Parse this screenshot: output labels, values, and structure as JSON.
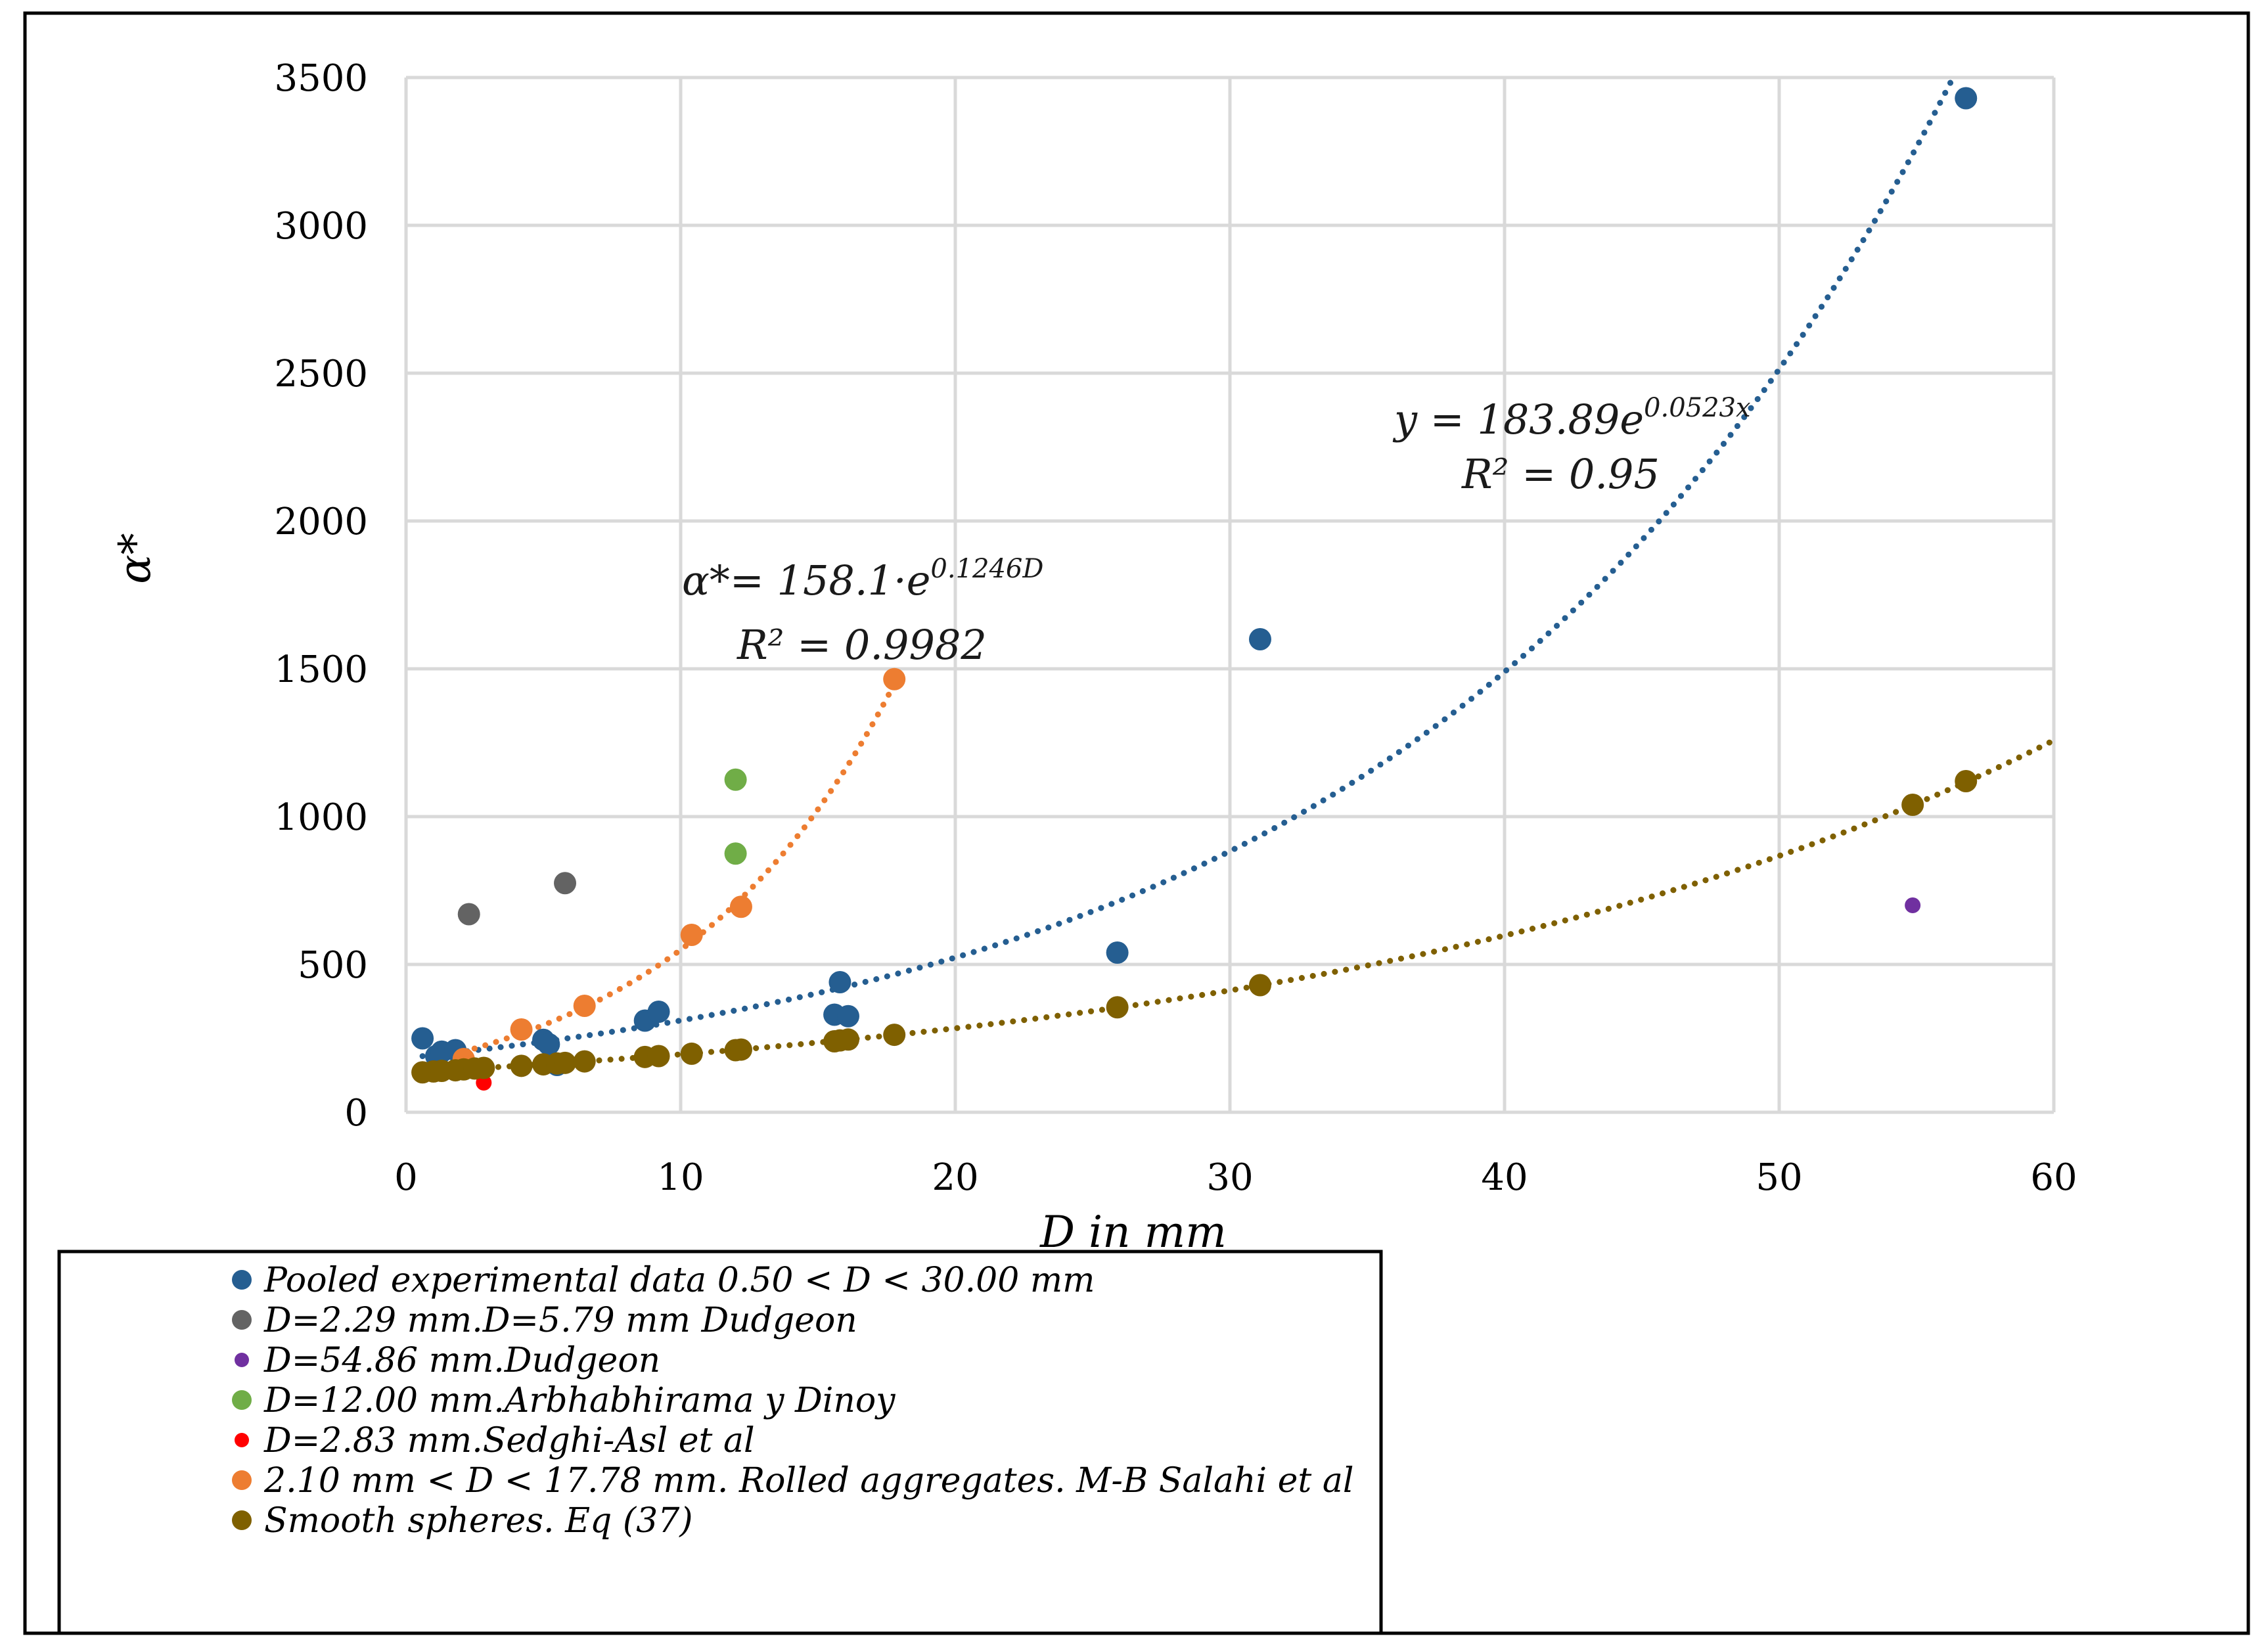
{
  "chart_data": {
    "type": "scatter",
    "xlabel": "D in mm",
    "ylabel": "α*",
    "xlim": [
      0,
      60
    ],
    "ylim": [
      0,
      3500
    ],
    "x_ticks": [
      0,
      10,
      20,
      30,
      40,
      50,
      60
    ],
    "y_ticks": [
      0,
      500,
      1000,
      1500,
      2000,
      2500,
      3000,
      3500
    ],
    "grid": true,
    "legend_position": "bottom",
    "series": [
      {
        "name": "Pooled experimental data 0.50 < D < 30.00 mm",
        "color": "#255e91",
        "marker": "large",
        "points": [
          [
            0.6,
            250
          ],
          [
            1.1,
            190
          ],
          [
            1.3,
            205
          ],
          [
            1.8,
            210
          ],
          [
            2.1,
            175
          ],
          [
            5.0,
            245
          ],
          [
            5.2,
            230
          ],
          [
            5.5,
            160
          ],
          [
            8.7,
            310
          ],
          [
            9.2,
            340
          ],
          [
            15.6,
            330
          ],
          [
            15.8,
            440
          ],
          [
            16.1,
            325
          ],
          [
            25.9,
            540
          ],
          [
            31.1,
            1600
          ],
          [
            56.8,
            3430
          ]
        ]
      },
      {
        "name": "D=2.29 mm.D=5.79 mm Dudgeon",
        "color": "#636363",
        "marker": "large",
        "points": [
          [
            2.29,
            670
          ],
          [
            5.79,
            775
          ]
        ]
      },
      {
        "name": "D=54.86 mm.Dudgeon",
        "color": "#7030a0",
        "marker": "small",
        "points": [
          [
            54.86,
            700
          ]
        ]
      },
      {
        "name": "D=12.00 mm.Arbhabhirama y Dinoy",
        "color": "#70ad47",
        "marker": "large",
        "points": [
          [
            12.0,
            1125
          ],
          [
            12.0,
            875
          ]
        ]
      },
      {
        "name": "D=2.83 mm.Sedghi-Asl et al",
        "color": "#ff0000",
        "marker": "small",
        "points": [
          [
            2.83,
            100
          ]
        ]
      },
      {
        "name": "2.10 mm < D < 17.78 mm. Rolled aggregates. M-B Salahi et al",
        "color": "#ed7d31",
        "marker": "large",
        "points": [
          [
            2.1,
            180
          ],
          [
            4.2,
            280
          ],
          [
            6.5,
            360
          ],
          [
            10.4,
            600
          ],
          [
            12.2,
            695
          ],
          [
            17.78,
            1465
          ]
        ]
      },
      {
        "name": "Smooth spheres. Eq (37)",
        "color": "#7f6000",
        "marker": "large",
        "points": [
          [
            0.6,
            135
          ],
          [
            1.0,
            138
          ],
          [
            1.3,
            140
          ],
          [
            1.8,
            142
          ],
          [
            2.1,
            145
          ],
          [
            2.5,
            148
          ],
          [
            2.83,
            150
          ],
          [
            4.2,
            157
          ],
          [
            5.0,
            162
          ],
          [
            5.5,
            165
          ],
          [
            5.79,
            167
          ],
          [
            6.5,
            172
          ],
          [
            8.7,
            187
          ],
          [
            9.2,
            190
          ],
          [
            10.4,
            198
          ],
          [
            12.0,
            210
          ],
          [
            12.2,
            212
          ],
          [
            15.6,
            240
          ],
          [
            15.8,
            243
          ],
          [
            16.1,
            246
          ],
          [
            17.78,
            262
          ],
          [
            25.9,
            355
          ],
          [
            31.1,
            430
          ],
          [
            54.86,
            1040
          ],
          [
            56.8,
            1120
          ]
        ]
      }
    ],
    "trendlines": [
      {
        "series": "Pooled experimental data 0.50 < D < 30.00 mm",
        "color": "#255e91",
        "a": 183.89,
        "b": 0.0523,
        "x_range": [
          0.6,
          56.3
        ]
      },
      {
        "series": "2.10 mm < D < 17.78 mm. Rolled aggregates. M-B Salahi et al",
        "color": "#ed7d31",
        "a": 158.1,
        "b": 0.1246,
        "x_range": [
          2.1,
          17.78
        ]
      },
      {
        "series": "Smooth spheres. Eq (37)",
        "color": "#7f6000",
        "a": 135,
        "b": 0.0372,
        "x_range": [
          0.5,
          60
        ]
      }
    ],
    "annotations": {
      "blue_eq_base": "y = 183.89e",
      "blue_eq_exp": "0.0523x",
      "blue_r2": "R² = 0.95",
      "orange_eq_base": "α*= 158.1·e",
      "orange_eq_exp": "0.1246D",
      "orange_r2": "R² = 0.9982"
    }
  }
}
